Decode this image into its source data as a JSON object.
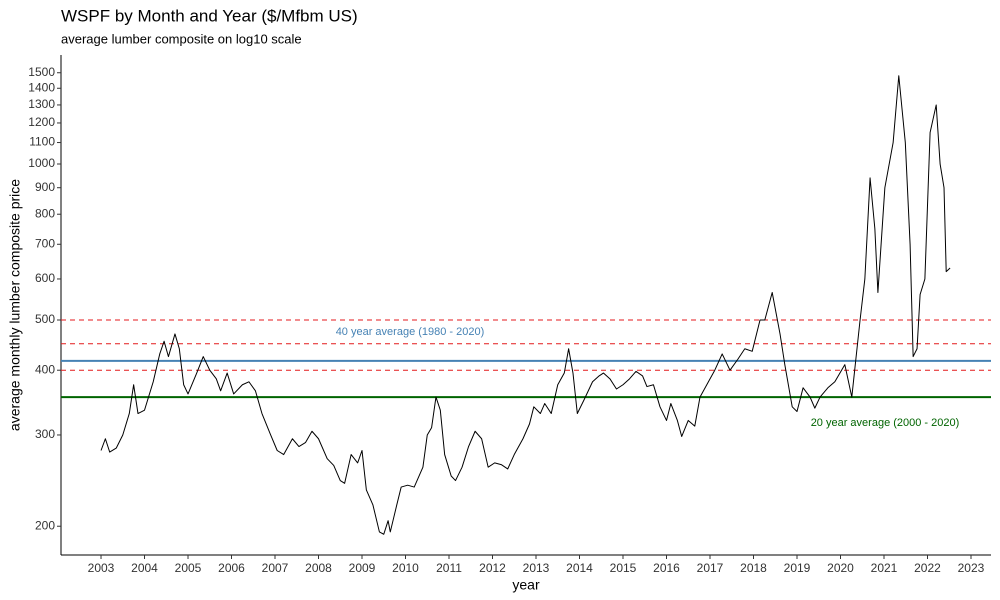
{
  "chart_data": {
    "type": "line",
    "title": "WSPF by Month and Year ($/Mfbm US)",
    "subtitle": "average lumber composite on log10 scale",
    "x_label": "year",
    "y_label": "average monthly lumber composite price",
    "log_y": true,
    "color": "#000000",
    "xlim": [
      2002.08,
      2023.46
    ],
    "ylim": [
      176,
      1623
    ],
    "xticks": [
      2003,
      2004,
      2005,
      2006,
      2007,
      2008,
      2009,
      2010,
      2011,
      2012,
      2013,
      2014,
      2015,
      2016,
      2017,
      2018,
      2019,
      2020,
      2021,
      2022,
      2023
    ],
    "yticks": [
      200,
      300,
      400,
      500,
      600,
      700,
      800,
      900,
      1000,
      1100,
      1200,
      1300,
      1400,
      1500
    ],
    "x": [
      2003.0,
      2003.1,
      2003.2,
      2003.35,
      2003.5,
      2003.65,
      2003.75,
      2003.85,
      2004.0,
      2004.2,
      2004.35,
      2004.45,
      2004.55,
      2004.7,
      2004.8,
      2004.9,
      2005.0,
      2005.2,
      2005.35,
      2005.5,
      2005.65,
      2005.75,
      2005.9,
      2006.05,
      2006.25,
      2006.4,
      2006.55,
      2006.7,
      2006.9,
      2007.05,
      2007.2,
      2007.4,
      2007.55,
      2007.7,
      2007.85,
      2008.0,
      2008.2,
      2008.35,
      2008.5,
      2008.6,
      2008.75,
      2008.9,
      2009.0,
      2009.1,
      2009.25,
      2009.4,
      2009.5,
      2009.6,
      2009.65,
      2009.8,
      2009.9,
      2010.05,
      2010.2,
      2010.4,
      2010.5,
      2010.6,
      2010.7,
      2010.8,
      2010.9,
      2011.05,
      2011.15,
      2011.3,
      2011.45,
      2011.6,
      2011.75,
      2011.9,
      2012.05,
      2012.2,
      2012.35,
      2012.5,
      2012.7,
      2012.85,
      2012.95,
      2013.1,
      2013.2,
      2013.35,
      2013.5,
      2013.65,
      2013.75,
      2013.85,
      2013.95,
      2014.1,
      2014.3,
      2014.45,
      2014.55,
      2014.7,
      2014.85,
      2015.0,
      2015.15,
      2015.3,
      2015.45,
      2015.55,
      2015.7,
      2015.85,
      2016.0,
      2016.1,
      2016.25,
      2016.35,
      2016.5,
      2016.65,
      2016.77,
      2017.11,
      2017.28,
      2017.46,
      2017.64,
      2017.8,
      2017.97,
      2018.15,
      2018.26,
      2018.43,
      2018.61,
      2018.72,
      2018.89,
      2019.0,
      2019.14,
      2019.3,
      2019.41,
      2019.53,
      2019.71,
      2019.87,
      2020.1,
      2020.26,
      2020.45,
      2020.56,
      2020.68,
      2020.79,
      2020.86,
      2021.02,
      2021.21,
      2021.34,
      2021.49,
      2021.6,
      2021.67,
      2021.76,
      2021.83,
      2021.94,
      2022.06,
      2022.2,
      2022.29,
      2022.38,
      2022.43,
      2022.52
    ],
    "values": [
      280,
      295,
      278,
      283,
      300,
      330,
      375,
      330,
      335,
      380,
      430,
      455,
      425,
      470,
      440,
      375,
      360,
      395,
      425,
      400,
      385,
      365,
      395,
      360,
      375,
      380,
      365,
      330,
      300,
      280,
      275,
      295,
      285,
      290,
      305,
      295,
      270,
      262,
      245,
      242,
      275,
      265,
      280,
      235,
      220,
      195,
      193,
      205,
      195,
      220,
      238,
      240,
      238,
      260,
      300,
      310,
      355,
      335,
      275,
      250,
      245,
      260,
      285,
      305,
      295,
      260,
      265,
      263,
      258,
      275,
      295,
      315,
      340,
      330,
      345,
      330,
      375,
      395,
      440,
      395,
      330,
      350,
      380,
      390,
      395,
      385,
      368,
      375,
      385,
      398,
      390,
      372,
      375,
      340,
      320,
      345,
      320,
      298,
      320,
      312,
      355,
      400,
      430,
      400,
      420,
      440,
      435,
      500,
      500,
      565,
      470,
      410,
      340,
      333,
      370,
      355,
      338,
      355,
      370,
      380,
      410,
      355,
      500,
      600,
      940,
      750,
      565,
      900,
      1100,
      1480,
      1100,
      700,
      425,
      440,
      560,
      600,
      1150,
      1300,
      1000,
      900,
      620,
      630
    ],
    "hlines": [
      {
        "value": 500,
        "color": "#e41a1c",
        "dashed": true
      },
      {
        "value": 450,
        "color": "#e41a1c",
        "dashed": true
      },
      {
        "value": 400,
        "color": "#e41a1c",
        "dashed": true
      },
      {
        "value": 417,
        "color": "#4682b4",
        "dashed": false,
        "label": "40 year average (1980 - 2020)"
      },
      {
        "value": 355,
        "color": "#006400",
        "dashed": false,
        "label": "20 year average (2000 - 2020)"
      }
    ]
  }
}
